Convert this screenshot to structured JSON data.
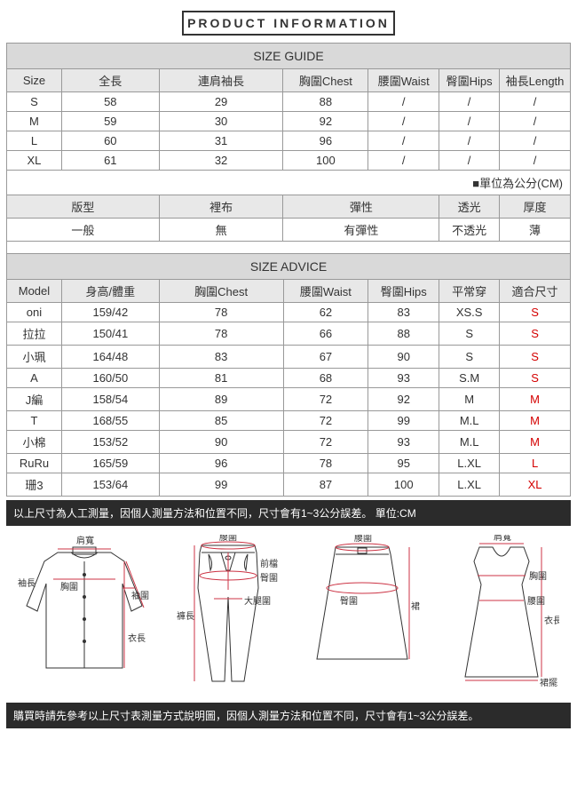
{
  "banner": "PRODUCT INFORMATION",
  "sizeGuide": {
    "title": "SIZE GUIDE",
    "columns": [
      "Size",
      "全長",
      "連肩袖長",
      "胸圍Chest",
      "腰圍Waist",
      "臀圍Hips",
      "袖長Length"
    ],
    "rows": [
      [
        "S",
        "58",
        "29",
        "88",
        "/",
        "/",
        "/"
      ],
      [
        "M",
        "59",
        "30",
        "92",
        "/",
        "/",
        "/"
      ],
      [
        "L",
        "60",
        "31",
        "96",
        "/",
        "/",
        "/"
      ],
      [
        "XL",
        "61",
        "32",
        "100",
        "/",
        "/",
        "/"
      ]
    ],
    "note": "■單位為公分(CM)"
  },
  "attrs": {
    "columns": [
      "版型",
      "裡布",
      "彈性",
      "透光",
      "厚度"
    ],
    "values": [
      "一般",
      "無",
      "有彈性",
      "不透光",
      "薄"
    ]
  },
  "sizeAdvice": {
    "title": "SIZE ADVICE",
    "columns": [
      "Model",
      "身高/體重",
      "胸圍Chest",
      "腰圍Waist",
      "臀圍Hips",
      "平常穿",
      "適合尺寸"
    ],
    "rows": [
      {
        "c": [
          "oni",
          "159/42",
          "78",
          "62",
          "83",
          "XS.S"
        ],
        "fit": "S"
      },
      {
        "c": [
          "拉拉",
          "150/41",
          "78",
          "66",
          "88",
          "S"
        ],
        "fit": "S"
      },
      {
        "c": [
          "小珮",
          "164/48",
          "83",
          "67",
          "90",
          "S"
        ],
        "fit": "S"
      },
      {
        "c": [
          "A",
          "160/50",
          "81",
          "68",
          "93",
          "S.M"
        ],
        "fit": "S"
      },
      {
        "c": [
          "J編",
          "158/54",
          "89",
          "72",
          "92",
          "M"
        ],
        "fit": "M"
      },
      {
        "c": [
          "T",
          "168/55",
          "85",
          "72",
          "99",
          "M.L"
        ],
        "fit": "M"
      },
      {
        "c": [
          "小棉",
          "153/52",
          "90",
          "72",
          "93",
          "M.L"
        ],
        "fit": "M"
      },
      {
        "c": [
          "RuRu",
          "165/59",
          "96",
          "78",
          "95",
          "L.XL"
        ],
        "fit": "L"
      },
      {
        "c": [
          "珊3",
          "153/64",
          "99",
          "87",
          "100",
          "L.XL"
        ],
        "fit": "XL"
      }
    ]
  },
  "bar1": "以上尺寸為人工測量，因個人測量方法和位置不同，尺寸會有1~3公分誤差。 單位:CM",
  "bar2": "購買時請先參考以上尺寸表測量方式說明圖，因個人測量方法和位置不同，尺寸會有1~3公分誤差。",
  "diagram": {
    "stroke": "#333333",
    "guide": "#cc3344",
    "label_fontsize": 10,
    "labels": {
      "shoulder": "肩寬",
      "chest": "胸圍",
      "waist": "腰圍",
      "hip": "臀圍",
      "sleeve": "袖長",
      "cuff": "袖圍",
      "length": "衣長",
      "pant_waist": "腰圍",
      "pant_front": "前檔",
      "pant_thigh": "大腿圍",
      "pant_hip": "臀圍",
      "pant_len": "褲長",
      "skirt_waist": "腰圍",
      "skirt_hip": "臀圍",
      "skirt_len": "裙長",
      "dress_hem": "裙擺"
    }
  },
  "colors": {
    "header_bg": "#d9d9d9",
    "colhdr_bg": "#e8e8e8",
    "border": "#999999",
    "text": "#333333",
    "fit_text": "#d40000",
    "bar_bg": "#2b2b2b",
    "bar_text": "#ffffff"
  }
}
